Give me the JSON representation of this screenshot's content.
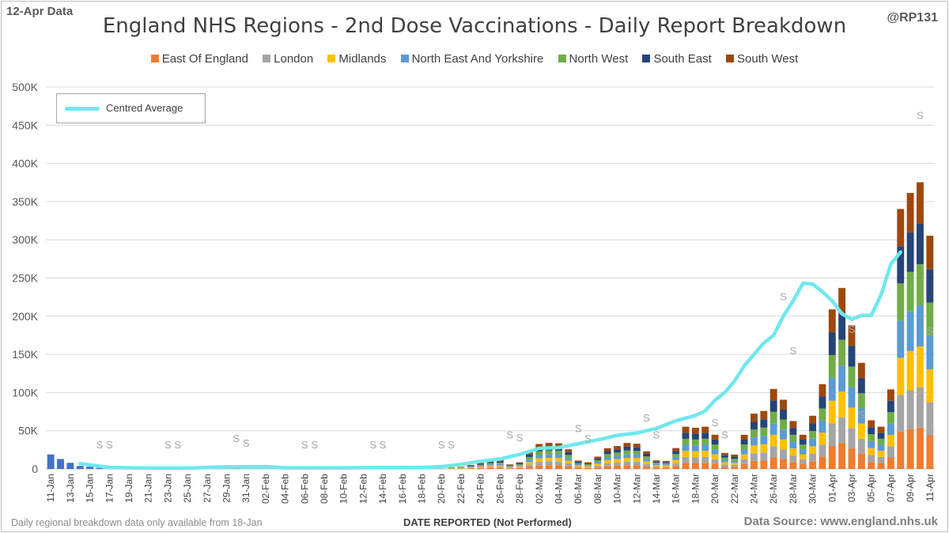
{
  "header": {
    "data_date": "12-Apr Data",
    "handle": "@RP131",
    "title": "England NHS Regions - 2nd Dose Vaccinations - Daily Report Breakdown"
  },
  "footer": {
    "note": "Daily regional breakdown data only available from 18-Jan",
    "source": "Data Source: www.england.nhs.uk"
  },
  "chart_data": {
    "type": "bar",
    "stacked": true,
    "title": "England NHS Regions - 2nd Dose Vaccinations - Daily Report Breakdown",
    "xlabel": "DATE REPORTED (Not Performed)",
    "ylabel": "",
    "ylim": [
      0,
      500000
    ],
    "yticks": [
      "0",
      "50K",
      "100K",
      "150K",
      "200K",
      "250K",
      "300K",
      "350K",
      "400K",
      "450K",
      "500K"
    ],
    "grid": true,
    "legend_position": "top",
    "colors": {
      "East Of England": "#ed7d31",
      "London": "#a5a5a5",
      "Midlands": "#ffc000",
      "North East And Yorkshire": "#5b9bd5",
      "North West": "#70ad47",
      "South East": "#264478",
      "South West": "#9e480e",
      "National": "#4472c4",
      "Centred Average": "#6fe8ee",
      "Sunday marker": "#a6a6a6"
    },
    "categories": [
      "11-Jan",
      "12-Jan",
      "13-Jan",
      "14-Jan",
      "15-Jan",
      "16-Jan",
      "17-Jan",
      "18-Jan",
      "19-Jan",
      "20-Jan",
      "21-Jan",
      "22-Jan",
      "23-Jan",
      "24-Jan",
      "25-Jan",
      "26-Jan",
      "27-Jan",
      "28-Jan",
      "29-Jan",
      "30-Jan",
      "31-Jan",
      "01-Feb",
      "02-Feb",
      "03-Feb",
      "04-Feb",
      "05-Feb",
      "06-Feb",
      "07-Feb",
      "08-Feb",
      "09-Feb",
      "10-Feb",
      "11-Feb",
      "12-Feb",
      "13-Feb",
      "14-Feb",
      "15-Feb",
      "16-Feb",
      "17-Feb",
      "18-Feb",
      "19-Feb",
      "20-Feb",
      "21-Feb",
      "22-Feb",
      "23-Feb",
      "24-Feb",
      "25-Feb",
      "26-Feb",
      "27-Feb",
      "28-Feb",
      "01-Mar",
      "02-Mar",
      "03-Mar",
      "04-Mar",
      "05-Mar",
      "06-Mar",
      "07-Mar",
      "08-Mar",
      "09-Mar",
      "10-Mar",
      "11-Mar",
      "12-Mar",
      "13-Mar",
      "14-Mar",
      "15-Mar",
      "16-Mar",
      "17-Mar",
      "18-Mar",
      "19-Mar",
      "20-Mar",
      "21-Mar",
      "22-Mar",
      "23-Mar",
      "24-Mar",
      "25-Mar",
      "26-Mar",
      "27-Mar",
      "28-Mar",
      "29-Mar",
      "30-Mar",
      "31-Mar",
      "01-Apr",
      "02-Apr",
      "03-Apr",
      "04-Apr",
      "05-Apr",
      "06-Apr",
      "07-Apr",
      "08-Apr",
      "09-Apr",
      "10-Apr",
      "11-Apr"
    ],
    "x_tick_labels": [
      "11-Jan",
      "13-Jan",
      "15-Jan",
      "17-Jan",
      "19-Jan",
      "21-Jan",
      "23-Jan",
      "25-Jan",
      "27-Jan",
      "29-Jan",
      "31-Jan",
      "02-Feb",
      "04-Feb",
      "06-Feb",
      "08-Feb",
      "10-Feb",
      "12-Feb",
      "14-Feb",
      "16-Feb",
      "18-Feb",
      "20-Feb",
      "22-Feb",
      "24-Feb",
      "26-Feb",
      "28-Feb",
      "02-Mar",
      "04-Mar",
      "06-Mar",
      "08-Mar",
      "10-Mar",
      "12-Mar",
      "14-Mar",
      "16-Mar",
      "18-Mar",
      "20-Mar",
      "22-Mar",
      "24-Mar",
      "26-Mar",
      "28-Mar",
      "30-Mar",
      "01-Apr",
      "03-Apr",
      "05-Apr",
      "07-Apr",
      "09-Apr",
      "11-Apr"
    ],
    "national_totals": [
      {
        "category": "11-Jan",
        "value": 19000
      },
      {
        "category": "12-Jan",
        "value": 13000
      },
      {
        "category": "13-Jan",
        "value": 8000
      },
      {
        "category": "14-Jan",
        "value": 4000
      },
      {
        "category": "15-Jan",
        "value": 3000
      },
      {
        "category": "16-Jan",
        "value": 1500
      },
      {
        "category": "17-Jan",
        "value": 1000
      }
    ],
    "sunday_marker_text": "S",
    "sunday_markers": [
      {
        "category": "16-Jan",
        "value": 27000
      },
      {
        "category": "17-Jan",
        "value": 27000
      },
      {
        "category": "23-Jan",
        "value": 27000
      },
      {
        "category": "24-Jan",
        "value": 27000
      },
      {
        "category": "30-Jan",
        "value": 35000
      },
      {
        "category": "31-Jan",
        "value": 29000
      },
      {
        "category": "06-Feb",
        "value": 27000
      },
      {
        "category": "07-Feb",
        "value": 27000
      },
      {
        "category": "13-Feb",
        "value": 27000
      },
      {
        "category": "14-Feb",
        "value": 27000
      },
      {
        "category": "20-Feb",
        "value": 27000
      },
      {
        "category": "21-Feb",
        "value": 27000
      },
      {
        "category": "27-Feb",
        "value": 40000
      },
      {
        "category": "28-Feb",
        "value": 36000
      },
      {
        "category": "06-Mar",
        "value": 48000
      },
      {
        "category": "07-Mar",
        "value": 35000
      },
      {
        "category": "13-Mar",
        "value": 62000
      },
      {
        "category": "14-Mar",
        "value": 40000
      },
      {
        "category": "20-Mar",
        "value": 56000
      },
      {
        "category": "21-Mar",
        "value": 40000
      },
      {
        "category": "27-Mar",
        "value": 221000
      },
      {
        "category": "28-Mar",
        "value": 150000
      },
      {
        "category": "03-Apr",
        "value": 178000
      },
      {
        "category": "04-Apr",
        "value": 66000
      },
      {
        "category": "10-Apr",
        "value": 458000
      },
      {
        "category": "11-Apr",
        "value": 176000
      }
    ],
    "series": [
      {
        "name": "East Of England",
        "values": [
          0,
          0,
          0,
          0,
          0,
          0,
          0,
          0,
          0,
          0,
          0,
          0,
          0,
          0,
          0,
          0,
          0,
          0,
          0,
          500,
          0,
          0,
          0,
          0,
          0,
          0,
          0,
          0,
          0,
          0,
          0,
          0,
          0,
          0,
          0,
          0,
          0,
          0,
          0,
          0,
          0,
          400,
          500,
          900,
          1300,
          1700,
          1800,
          900,
          1200,
          3200,
          4800,
          5000,
          5000,
          3800,
          1500,
          1200,
          2300,
          3900,
          4400,
          5000,
          4800,
          3300,
          1600,
          1500,
          3900,
          7900,
          7800,
          8000,
          6500,
          3000,
          2700,
          6500,
          10500,
          11000,
          15000,
          13000,
          9000,
          6500,
          10000,
          16000,
          30000,
          34000,
          27000,
          20000,
          9200,
          8000,
          15000,
          49000,
          52000,
          54000,
          44000
        ]
      },
      {
        "name": "London",
        "values": [
          0,
          0,
          0,
          0,
          0,
          0,
          0,
          0,
          0,
          0,
          0,
          0,
          0,
          0,
          0,
          0,
          0,
          0,
          0,
          400,
          0,
          0,
          0,
          0,
          0,
          0,
          0,
          0,
          0,
          0,
          0,
          0,
          0,
          0,
          0,
          0,
          0,
          0,
          0,
          0,
          0,
          300,
          300,
          400,
          700,
          1100,
          1200,
          600,
          1000,
          2500,
          4500,
          4800,
          4700,
          3600,
          1500,
          1200,
          2200,
          3700,
          4100,
          4600,
          4800,
          3300,
          1600,
          1500,
          3800,
          7800,
          7600,
          7800,
          6300,
          2900,
          2600,
          6200,
          10000,
          10500,
          14800,
          12700,
          8800,
          6200,
          9700,
          15600,
          29500,
          33500,
          26500,
          19500,
          9000,
          7800,
          14700,
          48000,
          51000,
          53000,
          43000
        ]
      },
      {
        "name": "Midlands",
        "values": [
          0,
          0,
          0,
          0,
          0,
          0,
          0,
          0,
          0,
          0,
          0,
          0,
          0,
          0,
          0,
          0,
          0,
          0,
          0,
          500,
          0,
          0,
          0,
          0,
          0,
          0,
          0,
          0,
          0,
          0,
          0,
          0,
          0,
          0,
          0,
          0,
          0,
          0,
          0,
          0,
          0,
          300,
          400,
          700,
          1100,
          1600,
          1700,
          800,
          1300,
          3300,
          4600,
          4700,
          4600,
          3500,
          1600,
          1200,
          2400,
          4000,
          4300,
          4800,
          4600,
          3200,
          1600,
          1500,
          4000,
          8000,
          7700,
          7900,
          6400,
          3000,
          2700,
          6400,
          10300,
          10800,
          14900,
          12900,
          8900,
          6400,
          9900,
          15800,
          29800,
          33800,
          26800,
          19800,
          9100,
          7900,
          14800,
          48500,
          51500,
          53500,
          43500
        ]
      },
      {
        "name": "North East And Yorkshire",
        "values": [
          0,
          0,
          0,
          0,
          0,
          0,
          0,
          0,
          0,
          0,
          0,
          0,
          0,
          0,
          0,
          0,
          0,
          0,
          0,
          500,
          0,
          0,
          0,
          0,
          0,
          0,
          0,
          0,
          0,
          0,
          0,
          0,
          0,
          0,
          0,
          0,
          0,
          0,
          0,
          0,
          0,
          300,
          400,
          800,
          1200,
          1700,
          1800,
          900,
          1300,
          3300,
          4700,
          4900,
          4800,
          3700,
          1600,
          1300,
          2300,
          3900,
          4300,
          4900,
          4700,
          3300,
          1600,
          1500,
          3900,
          7900,
          7700,
          7900,
          6400,
          3000,
          2700,
          6400,
          10400,
          10900,
          15000,
          13000,
          9000,
          6400,
          10000,
          15900,
          29900,
          33900,
          26900,
          19900,
          9100,
          7900,
          14900,
          48700,
          51700,
          53700,
          43700
        ]
      },
      {
        "name": "North West",
        "values": [
          0,
          0,
          0,
          0,
          0,
          0,
          0,
          0,
          0,
          0,
          0,
          0,
          0,
          0,
          0,
          0,
          0,
          0,
          0,
          500,
          0,
          0,
          0,
          0,
          0,
          0,
          0,
          0,
          0,
          0,
          0,
          0,
          0,
          0,
          0,
          0,
          0,
          0,
          0,
          0,
          0,
          300,
          400,
          800,
          1200,
          1700,
          1800,
          900,
          1300,
          3300,
          4700,
          4900,
          4800,
          3700,
          1600,
          1300,
          2300,
          3900,
          4300,
          4900,
          4700,
          3300,
          1600,
          1500,
          3900,
          7900,
          7700,
          7900,
          6400,
          3000,
          2700,
          6400,
          10400,
          10900,
          15000,
          13000,
          9000,
          6400,
          10000,
          15900,
          29900,
          33900,
          26900,
          19900,
          9100,
          7900,
          14900,
          48700,
          51700,
          53700,
          43700
        ]
      },
      {
        "name": "South East",
        "values": [
          0,
          0,
          0,
          0,
          0,
          0,
          0,
          0,
          0,
          0,
          0,
          0,
          0,
          0,
          0,
          0,
          0,
          0,
          0,
          500,
          0,
          0,
          0,
          0,
          0,
          0,
          0,
          0,
          0,
          0,
          0,
          0,
          0,
          0,
          0,
          0,
          0,
          0,
          0,
          0,
          0,
          300,
          400,
          800,
          1200,
          1700,
          1800,
          900,
          1300,
          3300,
          4700,
          4900,
          4800,
          3700,
          1600,
          1300,
          2300,
          3900,
          4300,
          4900,
          4700,
          3300,
          1600,
          1500,
          3900,
          7900,
          7700,
          7900,
          6400,
          3000,
          2700,
          6400,
          10400,
          10900,
          15000,
          13000,
          9000,
          6400,
          10000,
          15900,
          29900,
          33900,
          26900,
          19900,
          9100,
          7900,
          14900,
          48700,
          51700,
          53700,
          43700
        ]
      },
      {
        "name": "South West",
        "values": [
          0,
          0,
          0,
          0,
          0,
          0,
          0,
          0,
          0,
          0,
          0,
          0,
          0,
          0,
          0,
          0,
          0,
          0,
          0,
          500,
          0,
          0,
          0,
          0,
          0,
          0,
          0,
          0,
          0,
          0,
          0,
          0,
          0,
          0,
          0,
          0,
          0,
          0,
          0,
          0,
          0,
          300,
          400,
          800,
          1200,
          1700,
          1800,
          900,
          1300,
          3300,
          4700,
          4900,
          4800,
          3700,
          1600,
          1300,
          2300,
          3900,
          4300,
          4900,
          4700,
          3300,
          1600,
          1500,
          3900,
          7900,
          7700,
          7900,
          6400,
          3000,
          2700,
          6400,
          10400,
          10900,
          15000,
          13000,
          9000,
          6400,
          10000,
          15900,
          29900,
          33900,
          26900,
          19900,
          9100,
          7900,
          14900,
          48700,
          51700,
          53700,
          43700
        ]
      }
    ],
    "centred_average": {
      "name": "Centred Average",
      "points": [
        {
          "category": "14-Jan",
          "value": 7000
        },
        {
          "category": "17-Jan",
          "value": 2000
        },
        {
          "category": "21-Jan",
          "value": 1000
        },
        {
          "category": "25-Jan",
          "value": 1000
        },
        {
          "category": "28-Jan",
          "value": 2500
        },
        {
          "category": "31-Jan",
          "value": 3000
        },
        {
          "category": "02-Feb",
          "value": 3000
        },
        {
          "category": "04-Feb",
          "value": 1500
        },
        {
          "category": "10-Feb",
          "value": 1500
        },
        {
          "category": "14-Feb",
          "value": 2000
        },
        {
          "category": "18-Feb",
          "value": 2000
        },
        {
          "category": "20-Feb",
          "value": 3000
        },
        {
          "category": "22-Feb",
          "value": 6000
        },
        {
          "category": "24-Feb",
          "value": 10000
        },
        {
          "category": "26-Feb",
          "value": 13000
        },
        {
          "category": "28-Feb",
          "value": 19000
        },
        {
          "category": "01-Mar",
          "value": 23000
        },
        {
          "category": "02-Mar",
          "value": 27000
        },
        {
          "category": "04-Mar",
          "value": 28000
        },
        {
          "category": "06-Mar",
          "value": 33000
        },
        {
          "category": "08-Mar",
          "value": 38000
        },
        {
          "category": "10-Mar",
          "value": 44000
        },
        {
          "category": "12-Mar",
          "value": 47000
        },
        {
          "category": "14-Mar",
          "value": 53000
        },
        {
          "category": "16-Mar",
          "value": 63000
        },
        {
          "category": "18-Mar",
          "value": 70000
        },
        {
          "category": "19-Mar",
          "value": 76000
        },
        {
          "category": "20-Mar",
          "value": 90000
        },
        {
          "category": "21-Mar",
          "value": 100000
        },
        {
          "category": "22-Mar",
          "value": 115000
        },
        {
          "category": "23-Mar",
          "value": 135000
        },
        {
          "category": "24-Mar",
          "value": 150000
        },
        {
          "category": "25-Mar",
          "value": 165000
        },
        {
          "category": "26-Mar",
          "value": 175000
        },
        {
          "category": "27-Mar",
          "value": 200000
        },
        {
          "category": "28-Mar",
          "value": 220000
        },
        {
          "category": "29-Mar",
          "value": 243000
        },
        {
          "category": "30-Mar",
          "value": 242000
        },
        {
          "category": "31-Mar",
          "value": 232000
        },
        {
          "category": "01-Apr",
          "value": 220000
        },
        {
          "category": "02-Apr",
          "value": 203000
        },
        {
          "category": "03-Apr",
          "value": 196000
        },
        {
          "category": "04-Apr",
          "value": 201000
        },
        {
          "category": "05-Apr",
          "value": 201000
        },
        {
          "category": "06-Apr",
          "value": 228000
        },
        {
          "category": "07-Apr",
          "value": 268000
        },
        {
          "category": "08-Apr",
          "value": 284000
        }
      ]
    }
  }
}
